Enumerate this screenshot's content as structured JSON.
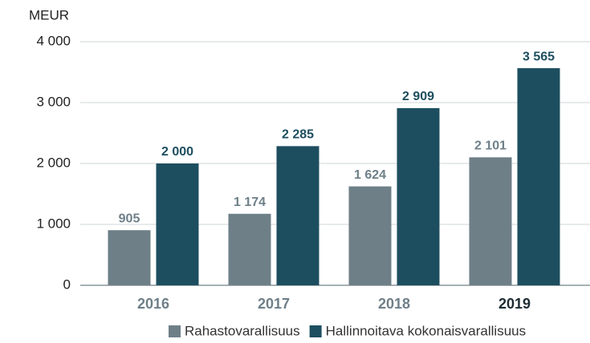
{
  "chart_data": {
    "type": "bar",
    "ylabel": "MEUR",
    "categories": [
      "2016",
      "2017",
      "2018",
      "2019"
    ],
    "series": [
      {
        "name": "Rahastovarallisuus",
        "color": "#6e7f88",
        "values": [
          905,
          1174,
          1624,
          2101
        ],
        "value_labels": [
          "905",
          "1 174",
          "1 624",
          "2 101"
        ]
      },
      {
        "name": "Hallinnoitava kokonaisvarallisuus",
        "color": "#1d4e5f",
        "values": [
          2000,
          2285,
          2909,
          3565
        ],
        "value_labels": [
          "2 000",
          "2 285",
          "2 909",
          "3 565"
        ]
      }
    ],
    "ylim": [
      0,
      4000
    ],
    "yticks": [
      0,
      {
        "value": 1000,
        "label": "1 000"
      },
      {
        "value": 2000,
        "label": "2 000"
      },
      {
        "value": 3000,
        "label": "3 000"
      },
      {
        "value": 4000,
        "label": "4 000"
      }
    ],
    "grid": true,
    "legend": "bottom"
  }
}
